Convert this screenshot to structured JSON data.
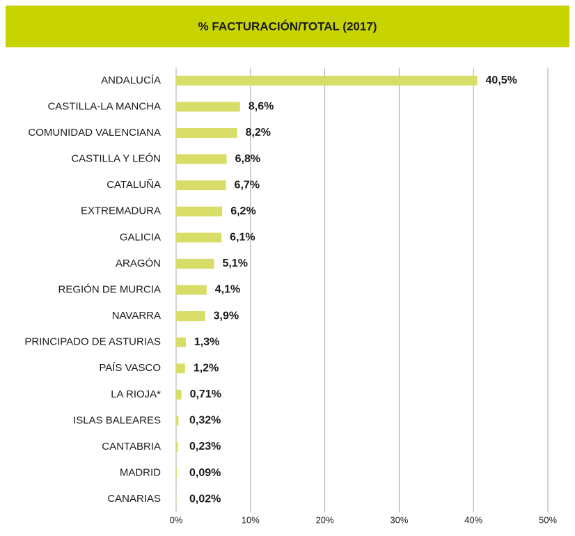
{
  "chart_data": {
    "type": "bar",
    "orientation": "horizontal",
    "title": "% FACTURACIÓN/TOTAL (2017)",
    "categories": [
      "ANDALUCÍA",
      "CASTILLA-LA MANCHA",
      "COMUNIDAD VALENCIANA",
      "CASTILLA Y LEÓN",
      "CATALUÑA",
      "EXTREMADURA",
      "GALICIA",
      "ARAGÓN",
      "REGIÓN DE MURCIA",
      "NAVARRA",
      "PRINCIPADO DE ASTURIAS",
      "PAÍS VASCO",
      "LA RIOJA*",
      "ISLAS BALEARES",
      "CANTABRIA",
      "MADRID",
      "CANARIAS"
    ],
    "values": [
      40.5,
      8.6,
      8.2,
      6.8,
      6.7,
      6.2,
      6.1,
      5.1,
      4.1,
      3.9,
      1.3,
      1.2,
      0.71,
      0.32,
      0.23,
      0.09,
      0.02
    ],
    "value_labels": [
      "40,5%",
      "8,6%",
      "8,2%",
      "6,8%",
      "6,7%",
      "6,2%",
      "6,1%",
      "5,1%",
      "4,1%",
      "3,9%",
      "1,3%",
      "1,2%",
      "0,71%",
      "0,32%",
      "0,23%",
      "0,09%",
      "0,02%"
    ],
    "color": "#d8dd68",
    "xlim": [
      0,
      50
    ],
    "xticks": [
      {
        "value": 0,
        "label": "0%"
      },
      {
        "value": 10,
        "label": "10%"
      },
      {
        "value": 20,
        "label": "20%"
      },
      {
        "value": 30,
        "label": "30%"
      },
      {
        "value": 40,
        "label": "40%"
      },
      {
        "value": 50,
        "label": "50%"
      }
    ],
    "grid": true
  }
}
